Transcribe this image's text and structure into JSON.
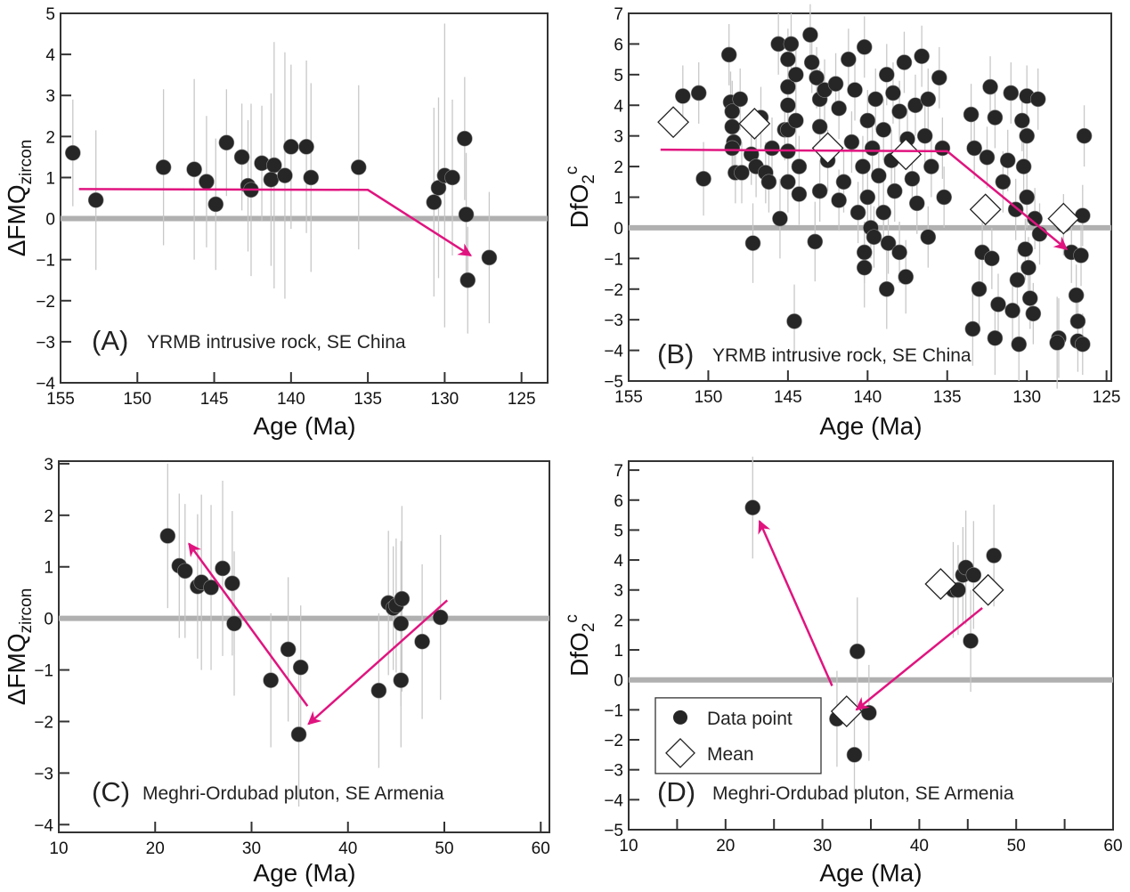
{
  "colors": {
    "point": "#262626",
    "error_bar": "#c8c8c8",
    "zero_line": "#b0b0b0",
    "trend": "#e0147f",
    "mean_fill": "#ffffff"
  },
  "chart_data": [
    {
      "id": "A",
      "type": "scatter",
      "panel_label": "(A)",
      "annotation": "YRMB intrusive rock, SE China",
      "xlabel": "Age (Ma)",
      "ylabel_main": "ΔFMQ",
      "ylabel_sub": "zircon",
      "ylabel_sup": "",
      "xlim": [
        155,
        123.3
      ],
      "ylim": [
        -4,
        5
      ],
      "xticks": [
        155,
        150,
        145,
        140,
        135,
        130,
        125
      ],
      "yticks": [
        -4,
        -3,
        -2,
        -1,
        0,
        1,
        2,
        3,
        4,
        5
      ],
      "xtick_labels": [
        "155",
        "150",
        "145",
        "140",
        "135",
        "130",
        "125"
      ],
      "ytick_labels": [
        "−4",
        "−3",
        "−2",
        "−1",
        "0",
        "1",
        "2",
        "3",
        "4",
        "5"
      ],
      "reference_line_y": 0,
      "points": [
        [
          154.2,
          1.6,
          1.3
        ],
        [
          152.7,
          0.45,
          1.7
        ],
        [
          148.3,
          1.25,
          1.9
        ],
        [
          146.3,
          1.2,
          2.2
        ],
        [
          145.5,
          0.9,
          1.6
        ],
        [
          144.9,
          0.35,
          1.6
        ],
        [
          144.2,
          1.85,
          1.3
        ],
        [
          143.2,
          1.5,
          1.3
        ],
        [
          142.8,
          0.8,
          1.6
        ],
        [
          142.6,
          0.7,
          2.1
        ],
        [
          141.9,
          1.35,
          1.4
        ],
        [
          141.1,
          1.3,
          3.0
        ],
        [
          141.3,
          0.95,
          2.1
        ],
        [
          140.4,
          1.05,
          3.0
        ],
        [
          140.0,
          1.75,
          2.0
        ],
        [
          139.0,
          1.75,
          2.1
        ],
        [
          138.7,
          1.0,
          2.3
        ],
        [
          135.6,
          1.25,
          2.0
        ],
        [
          130.7,
          0.4,
          2.3
        ],
        [
          130.4,
          0.75,
          2.2
        ],
        [
          130.0,
          1.05,
          3.7
        ],
        [
          129.5,
          1.0,
          1.9
        ],
        [
          128.7,
          1.95,
          1.5
        ],
        [
          128.6,
          0.1,
          1.5
        ],
        [
          128.5,
          -1.5,
          1.3
        ],
        [
          127.1,
          -0.95,
          1.6
        ]
      ],
      "trend": [
        [
          153.8,
          0.72
        ],
        [
          135.0,
          0.7
        ],
        [
          128.3,
          -0.9
        ]
      ]
    },
    {
      "id": "B",
      "type": "scatter",
      "panel_label": "(B)",
      "annotation": "YRMB intrusive rock, SE China",
      "xlabel": "Age (Ma)",
      "ylabel_main": "DfO",
      "ylabel_sub": "2",
      "ylabel_sup": "c",
      "xlim": [
        155,
        124.7
      ],
      "ylim": [
        -5,
        7
      ],
      "xticks": [
        155,
        150,
        145,
        140,
        135,
        130,
        125
      ],
      "yticks": [
        -5,
        -4,
        -3,
        -2,
        -1,
        0,
        1,
        2,
        3,
        4,
        5,
        6,
        7
      ],
      "xtick_labels": [
        "155",
        "150",
        "145",
        "140",
        "135",
        "130",
        "125"
      ],
      "ytick_labels": [
        "−5",
        "−4",
        "−3",
        "−2",
        "−1",
        "0",
        "1",
        "2",
        "3",
        "4",
        "5",
        "6",
        "7"
      ],
      "reference_line_y": 0,
      "points": [
        [
          151.6,
          4.3,
          1
        ],
        [
          150.3,
          1.6,
          1.2
        ],
        [
          150.6,
          4.4,
          1
        ],
        [
          148.7,
          5.65,
          1
        ],
        [
          148.6,
          4.1,
          1
        ],
        [
          148.5,
          3.8,
          1
        ],
        [
          148.5,
          3.3,
          1
        ],
        [
          148.4,
          2.8,
          1
        ],
        [
          148.5,
          2.6,
          1
        ],
        [
          148.3,
          1.8,
          1
        ],
        [
          148.0,
          4.2,
          1
        ],
        [
          147.9,
          1.8,
          1
        ],
        [
          147.2,
          -0.5,
          1.3
        ],
        [
          147.3,
          2.4,
          1
        ],
        [
          147.0,
          2.0,
          1
        ],
        [
          146.7,
          3.6,
          1
        ],
        [
          146.4,
          1.8,
          1
        ],
        [
          146.2,
          1.5,
          1
        ],
        [
          146.0,
          2.6,
          1
        ],
        [
          145.6,
          6.0,
          1
        ],
        [
          145.5,
          0.3,
          1.3
        ],
        [
          145.2,
          3.2,
          1
        ],
        [
          145.0,
          5.5,
          1
        ],
        [
          145.0,
          4.6,
          1
        ],
        [
          145.0,
          4.0,
          1
        ],
        [
          145.0,
          3.2,
          1
        ],
        [
          145.0,
          2.5,
          1
        ],
        [
          145.0,
          1.5,
          1
        ],
        [
          144.8,
          6.0,
          1
        ],
        [
          144.5,
          5.0,
          1
        ],
        [
          144.5,
          3.5,
          1
        ],
        [
          144.3,
          2.0,
          1
        ],
        [
          144.3,
          1.1,
          1
        ],
        [
          144.6,
          -3.05,
          1.2
        ],
        [
          143.6,
          6.3,
          1
        ],
        [
          143.5,
          5.4,
          1
        ],
        [
          143.2,
          4.9,
          1
        ],
        [
          143.0,
          4.2,
          1
        ],
        [
          143.0,
          3.3,
          1
        ],
        [
          143.0,
          1.2,
          1
        ],
        [
          143.3,
          -0.45,
          1.3
        ],
        [
          142.7,
          4.5,
          1
        ],
        [
          142.5,
          2.2,
          1
        ],
        [
          142.0,
          4.7,
          1
        ],
        [
          141.8,
          3.9,
          1
        ],
        [
          141.5,
          1.5,
          1
        ],
        [
          141.8,
          0.9,
          1
        ],
        [
          141.2,
          5.5,
          1
        ],
        [
          141.0,
          2.8,
          1
        ],
        [
          140.8,
          4.5,
          1
        ],
        [
          140.6,
          0.5,
          1
        ],
        [
          140.3,
          2.0,
          1
        ],
        [
          140.2,
          5.9,
          1
        ],
        [
          140.2,
          -1.3,
          1.3
        ],
        [
          140.2,
          -0.8,
          1
        ],
        [
          140.0,
          3.5,
          1
        ],
        [
          140.0,
          1.0,
          1
        ],
        [
          139.8,
          0.0,
          1
        ],
        [
          139.7,
          2.6,
          1
        ],
        [
          139.6,
          -0.3,
          1
        ],
        [
          139.5,
          4.2,
          1
        ],
        [
          139.3,
          1.7,
          1
        ],
        [
          139.0,
          3.2,
          1
        ],
        [
          139.0,
          0.5,
          1
        ],
        [
          138.8,
          5.0,
          1
        ],
        [
          138.8,
          -2.0,
          1.3
        ],
        [
          138.7,
          -0.5,
          1
        ],
        [
          138.5,
          2.2,
          1
        ],
        [
          138.4,
          4.4,
          1
        ],
        [
          138.3,
          1.2,
          1
        ],
        [
          138.0,
          3.8,
          1
        ],
        [
          138.0,
          -0.8,
          1
        ],
        [
          137.7,
          5.4,
          1
        ],
        [
          137.6,
          -1.6,
          1.2
        ],
        [
          137.5,
          2.9,
          1
        ],
        [
          137.2,
          1.6,
          1
        ],
        [
          137.0,
          4.0,
          1
        ],
        [
          136.9,
          0.8,
          1
        ],
        [
          136.6,
          5.6,
          1
        ],
        [
          136.4,
          3.0,
          1
        ],
        [
          136.2,
          4.2,
          1
        ],
        [
          136.2,
          -0.3,
          1
        ],
        [
          136.0,
          2.0,
          1
        ],
        [
          135.5,
          4.9,
          1
        ],
        [
          135.3,
          2.6,
          1
        ],
        [
          135.2,
          1.0,
          1
        ],
        [
          133.5,
          3.7,
          1
        ],
        [
          133.3,
          2.6,
          1
        ],
        [
          133.0,
          -2.0,
          1.3
        ],
        [
          133.4,
          -3.3,
          1.2
        ],
        [
          132.8,
          -0.8,
          1
        ],
        [
          132.5,
          2.3,
          1
        ],
        [
          132.3,
          4.6,
          1
        ],
        [
          132.2,
          -1.0,
          1
        ],
        [
          132.0,
          3.6,
          1
        ],
        [
          132.0,
          -3.6,
          1.2
        ],
        [
          131.8,
          -2.5,
          1
        ],
        [
          131.5,
          1.5,
          1
        ],
        [
          131.2,
          2.2,
          1
        ],
        [
          131.0,
          4.4,
          1
        ],
        [
          130.9,
          -2.7,
          1
        ],
        [
          130.7,
          0.6,
          1
        ],
        [
          130.6,
          -1.7,
          1
        ],
        [
          130.5,
          -3.8,
          1.2
        ],
        [
          130.3,
          3.5,
          1
        ],
        [
          130.2,
          2.0,
          1
        ],
        [
          130.1,
          -0.7,
          1
        ],
        [
          130.0,
          4.3,
          1
        ],
        [
          130.0,
          3.0,
          1
        ],
        [
          130.0,
          1.0,
          1
        ],
        [
          129.9,
          -1.3,
          1
        ],
        [
          129.8,
          -2.3,
          1
        ],
        [
          129.6,
          -2.8,
          1
        ],
        [
          129.5,
          0.3,
          1
        ],
        [
          129.3,
          4.2,
          1
        ],
        [
          129.2,
          -0.2,
          1
        ],
        [
          128.0,
          -3.6,
          1.3
        ],
        [
          128.1,
          -3.75,
          1.5
        ],
        [
          127.7,
          0.1,
          1
        ],
        [
          127.2,
          -0.8,
          1
        ],
        [
          126.9,
          -2.2,
          1
        ],
        [
          126.8,
          -3.05,
          1
        ],
        [
          126.8,
          -3.7,
          1
        ],
        [
          126.6,
          -0.9,
          1
        ],
        [
          126.5,
          0.4,
          1
        ],
        [
          126.4,
          3.0,
          1
        ],
        [
          126.5,
          -3.8,
          1
        ]
      ],
      "means": [
        [
          152.2,
          3.45
        ],
        [
          147.1,
          3.4
        ],
        [
          142.5,
          2.6
        ],
        [
          137.6,
          2.4
        ],
        [
          132.6,
          0.6
        ],
        [
          127.7,
          0.3
        ]
      ],
      "trend": [
        [
          153.0,
          2.55
        ],
        [
          135.0,
          2.5
        ],
        [
          127.5,
          -0.7
        ]
      ]
    },
    {
      "id": "C",
      "type": "scatter",
      "panel_label": "(C)",
      "annotation": "Meghri-Ordubad pluton, SE Armenia",
      "xlabel": "Age (Ma)",
      "ylabel_main": "ΔFMQ",
      "ylabel_sub": "zircon",
      "ylabel_sup": "",
      "xlim": [
        10,
        60.9
      ],
      "ylim": [
        -4.15,
        3.05
      ],
      "xticks": [
        10,
        20,
        30,
        40,
        50,
        60
      ],
      "yticks": [
        -4,
        -3,
        -2,
        -1,
        0,
        1,
        2,
        3
      ],
      "xtick_labels": [
        "10",
        "20",
        "30",
        "40",
        "50",
        "60"
      ],
      "ytick_labels": [
        "−4",
        "−3",
        "−2",
        "−1",
        "0",
        "1",
        "2",
        "3"
      ],
      "reference_line_y": 0,
      "points": [
        [
          21.3,
          1.6,
          1.4
        ],
        [
          22.5,
          1.02,
          1.4
        ],
        [
          23.1,
          0.92,
          1.3
        ],
        [
          24.4,
          0.62,
          1.4
        ],
        [
          24.8,
          0.7,
          1.7
        ],
        [
          25.8,
          0.6,
          1.6
        ],
        [
          27.0,
          0.97,
          1.7
        ],
        [
          28.0,
          0.68,
          1.4
        ],
        [
          28.2,
          -0.1,
          1.4
        ],
        [
          32.0,
          -1.2,
          1.3
        ],
        [
          33.8,
          -0.6,
          1.4
        ],
        [
          35.1,
          -0.95,
          1.2
        ],
        [
          34.9,
          -2.25,
          1.4
        ],
        [
          43.2,
          -1.4,
          1.5
        ],
        [
          44.2,
          0.3,
          1.4
        ],
        [
          44.7,
          0.2,
          1.2
        ],
        [
          45.0,
          0.25,
          1.3
        ],
        [
          45.5,
          -0.1,
          1.6
        ],
        [
          45.6,
          0.38,
          1.8
        ],
        [
          45.5,
          -1.2,
          1.3
        ],
        [
          47.7,
          -0.45,
          1.5
        ],
        [
          49.6,
          0.02,
          1.6
        ]
      ],
      "trend_arrows": [
        [
          [
            35.8,
            -1.7
          ],
          [
            23.5,
            1.45
          ]
        ],
        [
          [
            50.3,
            0.35
          ],
          [
            35.9,
            -2.05
          ]
        ]
      ]
    },
    {
      "id": "D",
      "type": "scatter",
      "panel_label": "(D)",
      "annotation": "Meghri-Ordubad pluton, SE Armenia",
      "xlabel": "Age (Ma)",
      "ylabel_main": "DfO",
      "ylabel_sub": "2",
      "ylabel_sup": "c",
      "xlim": [
        10,
        60
      ],
      "ylim": [
        -5,
        7.3
      ],
      "xticks": [
        10,
        15,
        20,
        25,
        30,
        35,
        40,
        45,
        50,
        55,
        60
      ],
      "yticks": [
        -5,
        -4,
        -3,
        -2,
        -1,
        0,
        1,
        2,
        3,
        4,
        5,
        6,
        7
      ],
      "xtick_labels": [
        "10",
        "",
        "20",
        "",
        "30",
        "",
        "40",
        "",
        "50",
        "",
        "60"
      ],
      "ytick_labels": [
        "−5",
        "−4",
        "−3",
        "−2",
        "−1",
        "0",
        "1",
        "2",
        "3",
        "4",
        "5",
        "6",
        "7"
      ],
      "reference_line_y": 0,
      "points": [
        [
          22.8,
          5.75,
          1.7
        ],
        [
          31.5,
          -1.3,
          1.6
        ],
        [
          33.3,
          -2.5,
          1.3
        ],
        [
          33.6,
          0.95,
          1.8
        ],
        [
          34.8,
          -1.1,
          1.6
        ],
        [
          43.5,
          3.0,
          1.6
        ],
        [
          44.0,
          3.0,
          1.5
        ],
        [
          44.5,
          3.5,
          1.6
        ],
        [
          44.8,
          3.75,
          1.9
        ],
        [
          45.3,
          1.3,
          1.7
        ],
        [
          45.6,
          3.5,
          1.8
        ],
        [
          47.7,
          4.15,
          1.7
        ]
      ],
      "means": [
        [
          42.2,
          3.2
        ],
        [
          47.1,
          3.0
        ],
        [
          32.5,
          -1.05
        ]
      ],
      "trend_arrows": [
        [
          [
            31.0,
            -0.2
          ],
          [
            23.5,
            5.3
          ]
        ],
        [
          [
            46.5,
            2.4
          ],
          [
            33.5,
            -1.0
          ]
        ]
      ],
      "legend": {
        "placement": "bottom-left",
        "entries": [
          {
            "marker": "circle",
            "label": "Data point"
          },
          {
            "marker": "diamond",
            "label": "Mean"
          }
        ]
      }
    }
  ]
}
